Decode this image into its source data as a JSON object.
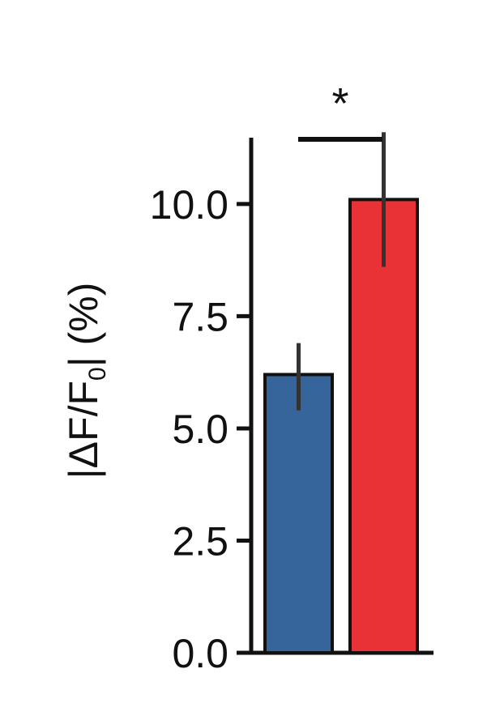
{
  "chart_data": {
    "type": "bar",
    "title": "",
    "xlabel": "",
    "ylabel": "|ΔF/F0| (%)",
    "ylabel_parts": {
      "pre": "|ΔF/F",
      "sub": "0",
      "post": "| (%)"
    },
    "ylim": [
      0,
      12.2
    ],
    "yticks": [
      0.0,
      2.5,
      5.0,
      7.5,
      10.0
    ],
    "ytick_labels": [
      "0.0",
      "2.5",
      "5.0",
      "7.5",
      "10.0"
    ],
    "categories": [
      "",
      ""
    ],
    "values": [
      6.2,
      10.1
    ],
    "errors": [
      {
        "low": 5.4,
        "high": 6.9
      },
      {
        "low": 8.6,
        "high": 11.6
      }
    ],
    "colors": [
      "#35659a",
      "#e83236"
    ],
    "significance": {
      "label": "*",
      "between": [
        0,
        1
      ]
    },
    "grid": false,
    "legend": "none"
  }
}
